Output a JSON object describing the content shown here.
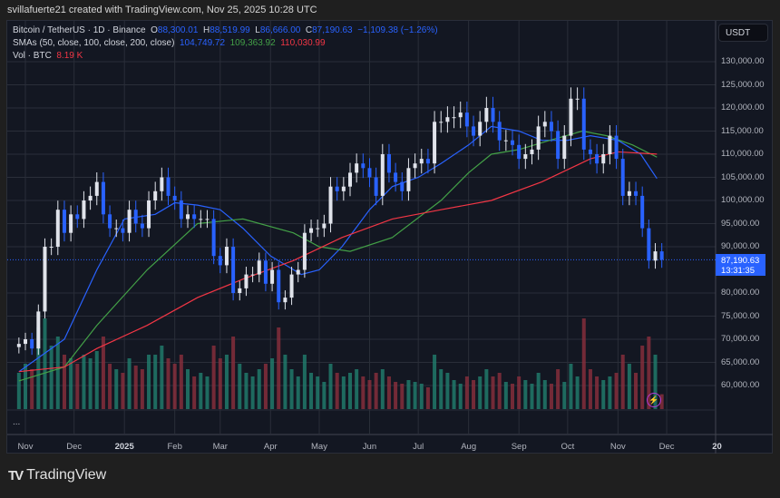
{
  "credit": "svillafuerte21 created with TradingView.com, Nov 25, 2025 10:28 UTC",
  "legend": {
    "symbol": "Bitcoin / TetherUS · 1D · Binance",
    "o_label": "O",
    "open": "88,300.01",
    "h_label": "H",
    "high": "88,519.99",
    "l_label": "L",
    "low": "86,666.00",
    "c_label": "C",
    "close": "87,190.63",
    "change": "−1,109.38 (−1.26%)",
    "sma_label": "SMAs (50, close, 100, close, 200, close)",
    "sma50": "104,749.72",
    "sma100": "109,363.92",
    "sma200": "110,030.99",
    "vol_label": "Vol · BTC",
    "vol": "8.19 K"
  },
  "currency": "USDT",
  "price_tag": {
    "price": "87,190.63",
    "countdown": "13:31:35"
  },
  "more_dots": "...",
  "brand": "TradingView",
  "colors": {
    "up": "#e0e3eb",
    "down": "#2962ff",
    "sma50": "#2962ff",
    "sma100": "#43a047",
    "sma200": "#f23645",
    "vol_up": "#22806f",
    "vol_down": "#8c2f3d",
    "bg": "#131722",
    "grid": "#2a2e39"
  },
  "chart_data": {
    "type": "candlestick",
    "price_ticks": [
      "130,000.00",
      "125,000.00",
      "120,000.00",
      "115,000.00",
      "110,000.00",
      "105,000.00",
      "100,000.00",
      "95,000.00",
      "90,000.00",
      "80,000.00",
      "75,000.00",
      "70,000.00",
      "65,000.00",
      "60,000.00"
    ],
    "price_tick_values": [
      130000,
      125000,
      120000,
      115000,
      110000,
      105000,
      100000,
      95000,
      90000,
      80000,
      75000,
      70000,
      65000,
      60000
    ],
    "time_ticks": [
      {
        "label": "Nov",
        "date": "2024-11-01"
      },
      {
        "label": "Dec",
        "date": "2024-12-01"
      },
      {
        "label": "2025",
        "date": "2025-01-01",
        "bold": true
      },
      {
        "label": "Feb",
        "date": "2025-02-01"
      },
      {
        "label": "Mar",
        "date": "2025-03-01"
      },
      {
        "label": "Apr",
        "date": "2025-04-01"
      },
      {
        "label": "May",
        "date": "2025-05-01"
      },
      {
        "label": "Jun",
        "date": "2025-06-01"
      },
      {
        "label": "Jul",
        "date": "2025-07-01"
      },
      {
        "label": "Aug",
        "date": "2025-08-01"
      },
      {
        "label": "Sep",
        "date": "2025-09-01"
      },
      {
        "label": "Oct",
        "date": "2025-10-01"
      },
      {
        "label": "Nov",
        "date": "2025-11-01"
      },
      {
        "label": "Dec",
        "date": "2025-12-01"
      },
      {
        "label": "20",
        "date": "2026-01-01",
        "bold": true
      }
    ],
    "closes_start": "2024-10-28",
    "closes_step_days": 4,
    "closes": [
      69000,
      70000,
      68000,
      76000,
      90000,
      90000,
      98000,
      93000,
      97000,
      96000,
      100000,
      101000,
      104000,
      97000,
      94000,
      94000,
      93000,
      98000,
      95000,
      94000,
      100000,
      102000,
      105000,
      101000,
      100000,
      96000,
      97000,
      96000,
      96000,
      96000,
      88000,
      86000,
      90000,
      80000,
      81000,
      84000,
      84000,
      87000,
      82000,
      85000,
      78000,
      79000,
      84000,
      85000,
      93000,
      94000,
      94000,
      95000,
      103000,
      102000,
      103000,
      106000,
      108000,
      107000,
      105000,
      101000,
      110000,
      106000,
      104000,
      102000,
      107000,
      108000,
      109000,
      108000,
      117000,
      117000,
      118000,
      118000,
      119000,
      116000,
      114000,
      117000,
      120000,
      117000,
      113000,
      113000,
      112000,
      109000,
      110000,
      111000,
      116000,
      117000,
      115000,
      109000,
      114000,
      122000,
      122000,
      111000,
      110000,
      108000,
      110000,
      114000,
      109000,
      101000,
      102000,
      101000,
      94000,
      87000,
      89000,
      87190.63
    ],
    "volumes_k": [
      20,
      25,
      22,
      45,
      50,
      35,
      40,
      30,
      28,
      25,
      30,
      28,
      32,
      40,
      25,
      22,
      20,
      28,
      24,
      22,
      30,
      30,
      35,
      28,
      25,
      30,
      22,
      18,
      20,
      18,
      35,
      28,
      30,
      40,
      25,
      20,
      18,
      22,
      25,
      28,
      45,
      30,
      22,
      18,
      30,
      20,
      18,
      15,
      25,
      20,
      18,
      20,
      22,
      18,
      16,
      20,
      22,
      18,
      15,
      14,
      16,
      15,
      14,
      12,
      30,
      22,
      20,
      16,
      14,
      18,
      16,
      18,
      22,
      18,
      20,
      15,
      14,
      18,
      16,
      14,
      20,
      16,
      14,
      22,
      15,
      25,
      18,
      50,
      22,
      18,
      16,
      18,
      20,
      30,
      25,
      20,
      35,
      40,
      30,
      8.19
    ],
    "sma": [
      {
        "name": "SMA 50",
        "points": [
          [
            "2024-10-28",
            63000
          ],
          [
            "2024-11-25",
            70000
          ],
          [
            "2024-12-15",
            85000
          ],
          [
            "2025-01-01",
            96000
          ],
          [
            "2025-01-20",
            97000
          ],
          [
            "2025-02-01",
            99500
          ],
          [
            "2025-02-15",
            99000
          ],
          [
            "2025-03-01",
            98000
          ],
          [
            "2025-03-15",
            94000
          ],
          [
            "2025-04-01",
            88000
          ],
          [
            "2025-04-20",
            84000
          ],
          [
            "2025-05-01",
            85000
          ],
          [
            "2025-05-15",
            90000
          ],
          [
            "2025-06-01",
            98000
          ],
          [
            "2025-06-15",
            103000
          ],
          [
            "2025-07-01",
            105000
          ],
          [
            "2025-07-15",
            108000
          ],
          [
            "2025-08-01",
            112000
          ],
          [
            "2025-08-15",
            116000
          ],
          [
            "2025-09-01",
            115000
          ],
          [
            "2025-09-15",
            113000
          ],
          [
            "2025-10-01",
            113000
          ],
          [
            "2025-10-15",
            114000
          ],
          [
            "2025-11-01",
            113000
          ],
          [
            "2025-11-15",
            110000
          ],
          [
            "2025-11-25",
            104749.72
          ]
        ]
      },
      {
        "name": "SMA 100",
        "points": [
          [
            "2024-10-28",
            61000
          ],
          [
            "2024-11-25",
            64000
          ],
          [
            "2024-12-15",
            73000
          ],
          [
            "2025-01-15",
            85000
          ],
          [
            "2025-02-15",
            95000
          ],
          [
            "2025-03-15",
            96000
          ],
          [
            "2025-04-15",
            93000
          ],
          [
            "2025-05-01",
            90000
          ],
          [
            "2025-05-20",
            89000
          ],
          [
            "2025-06-15",
            92000
          ],
          [
            "2025-07-15",
            100000
          ],
          [
            "2025-08-01",
            106000
          ],
          [
            "2025-08-15",
            110000
          ],
          [
            "2025-09-01",
            111000
          ],
          [
            "2025-09-20",
            113000
          ],
          [
            "2025-10-10",
            115000
          ],
          [
            "2025-10-25",
            114000
          ],
          [
            "2025-11-10",
            112000
          ],
          [
            "2025-11-25",
            109363.92
          ]
        ]
      },
      {
        "name": "SMA 200",
        "points": [
          [
            "2024-10-28",
            63000
          ],
          [
            "2024-11-25",
            64000
          ],
          [
            "2024-12-15",
            68000
          ],
          [
            "2025-01-15",
            73000
          ],
          [
            "2025-02-15",
            79000
          ],
          [
            "2025-03-15",
            83000
          ],
          [
            "2025-04-15",
            87000
          ],
          [
            "2025-05-15",
            92000
          ],
          [
            "2025-06-15",
            96000
          ],
          [
            "2025-07-15",
            98000
          ],
          [
            "2025-08-15",
            100000
          ],
          [
            "2025-09-15",
            104000
          ],
          [
            "2025-10-15",
            109000
          ],
          [
            "2025-11-01",
            110500
          ],
          [
            "2025-11-25",
            110030.99
          ]
        ]
      }
    ]
  }
}
